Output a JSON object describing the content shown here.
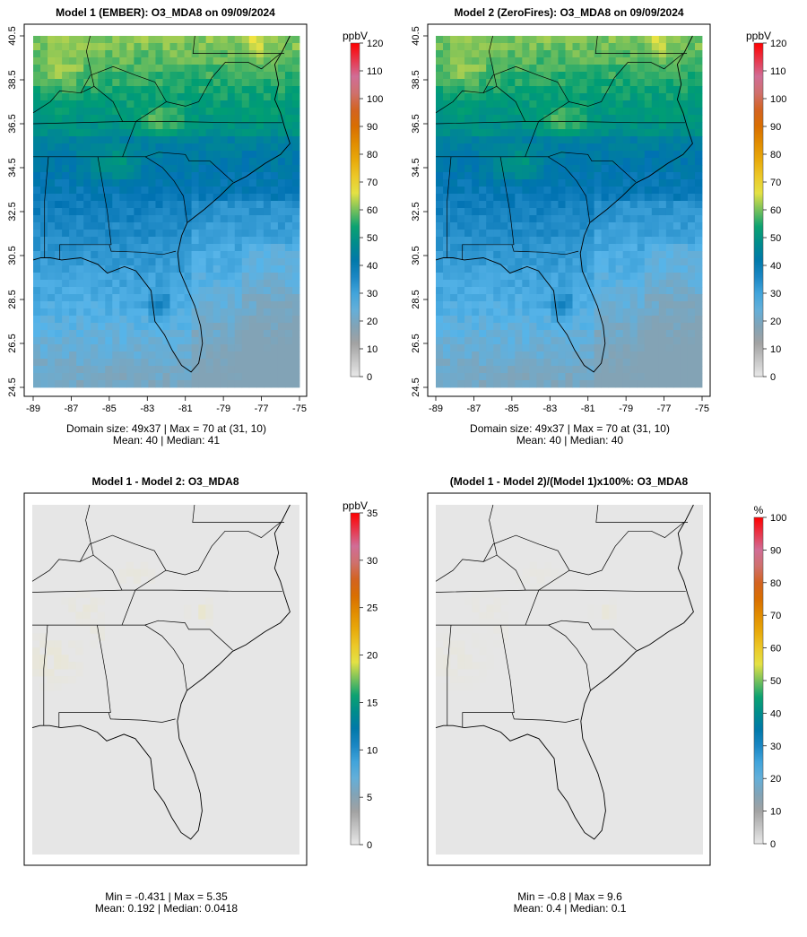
{
  "chart_data": [
    {
      "type": "heatmap",
      "title": "Model 1 (EMBER): O3_MDA8 on 09/09/2024",
      "xlim": [
        -89,
        -75
      ],
      "ylim": [
        24.5,
        40.5
      ],
      "x_ticks": [
        "-89",
        "-87",
        "-85",
        "-83",
        "-81",
        "-79",
        "-77",
        "-75"
      ],
      "y_ticks": [
        "24.5",
        "26.5",
        "28.5",
        "30.5",
        "32.5",
        "34.5",
        "36.5",
        "38.5",
        "40.5"
      ],
      "colorbar": {
        "unit": "ppbV",
        "min": 0,
        "max": 120,
        "ticks": [
          "0",
          "10",
          "20",
          "30",
          "40",
          "50",
          "60",
          "70",
          "80",
          "90",
          "100",
          "110",
          "120"
        ]
      },
      "stats": [
        "Domain size: 49x37 | Max = 70 at (31, 10)",
        "Mean: 40 |  Median: 41"
      ],
      "field": "ozone",
      "scale": 1.0
    },
    {
      "type": "heatmap",
      "title": "Model 2 (ZeroFires): O3_MDA8 on 09/09/2024",
      "xlim": [
        -89,
        -75
      ],
      "ylim": [
        24.5,
        40.5
      ],
      "x_ticks": [
        "-89",
        "-87",
        "-85",
        "-83",
        "-81",
        "-79",
        "-77",
        "-75"
      ],
      "y_ticks": [
        "24.5",
        "26.5",
        "28.5",
        "30.5",
        "32.5",
        "34.5",
        "36.5",
        "38.5",
        "40.5"
      ],
      "colorbar": {
        "unit": "ppbV",
        "min": 0,
        "max": 120,
        "ticks": [
          "0",
          "10",
          "20",
          "30",
          "40",
          "50",
          "60",
          "70",
          "80",
          "90",
          "100",
          "110",
          "120"
        ]
      },
      "stats": [
        "Domain size: 49x37 | Max = 70 at (31, 10)",
        "Mean: 40 |  Median: 40"
      ],
      "field": "ozone",
      "scale": 0.99
    },
    {
      "type": "heatmap",
      "title": "Model 1 - Model 2: O3_MDA8",
      "xlim": [
        -89,
        -75
      ],
      "ylim": [
        24.5,
        40.5
      ],
      "x_ticks": [],
      "y_ticks": [],
      "colorbar": {
        "unit": "ppbV",
        "min": 0,
        "max": 35,
        "ticks": [
          "0",
          "5",
          "10",
          "15",
          "20",
          "25",
          "30",
          "35"
        ]
      },
      "stats": [
        "Min = -0.431 | Max = 5.35",
        "Mean: 0.192 |  Median: 0.0418"
      ],
      "field": "diff",
      "scale": 1.0
    },
    {
      "type": "heatmap",
      "title": "(Model 1 - Model 2)/(Model 1)x100%: O3_MDA8",
      "xlim": [
        -89,
        -75
      ],
      "ylim": [
        24.5,
        40.5
      ],
      "x_ticks": [],
      "y_ticks": [],
      "colorbar": {
        "unit": "%",
        "min": 0,
        "max": 100,
        "ticks": [
          "0",
          "10",
          "20",
          "30",
          "40",
          "50",
          "60",
          "70",
          "80",
          "90",
          "100"
        ]
      },
      "stats": [
        "Min = -0.8 | Max = 9.6",
        "Mean: 0.4 |  Median: 0.1"
      ],
      "field": "pct",
      "scale": 1.0
    }
  ],
  "colors": {
    "ramp": [
      "#e8e8e8",
      "#9a9a9a",
      "#56b4e9",
      "#0072b2",
      "#009e73",
      "#f0e442",
      "#e69f00",
      "#d55e00",
      "#cc79a7",
      "#ff0000"
    ],
    "background": "#e6e6e6",
    "frame": "#000000"
  }
}
